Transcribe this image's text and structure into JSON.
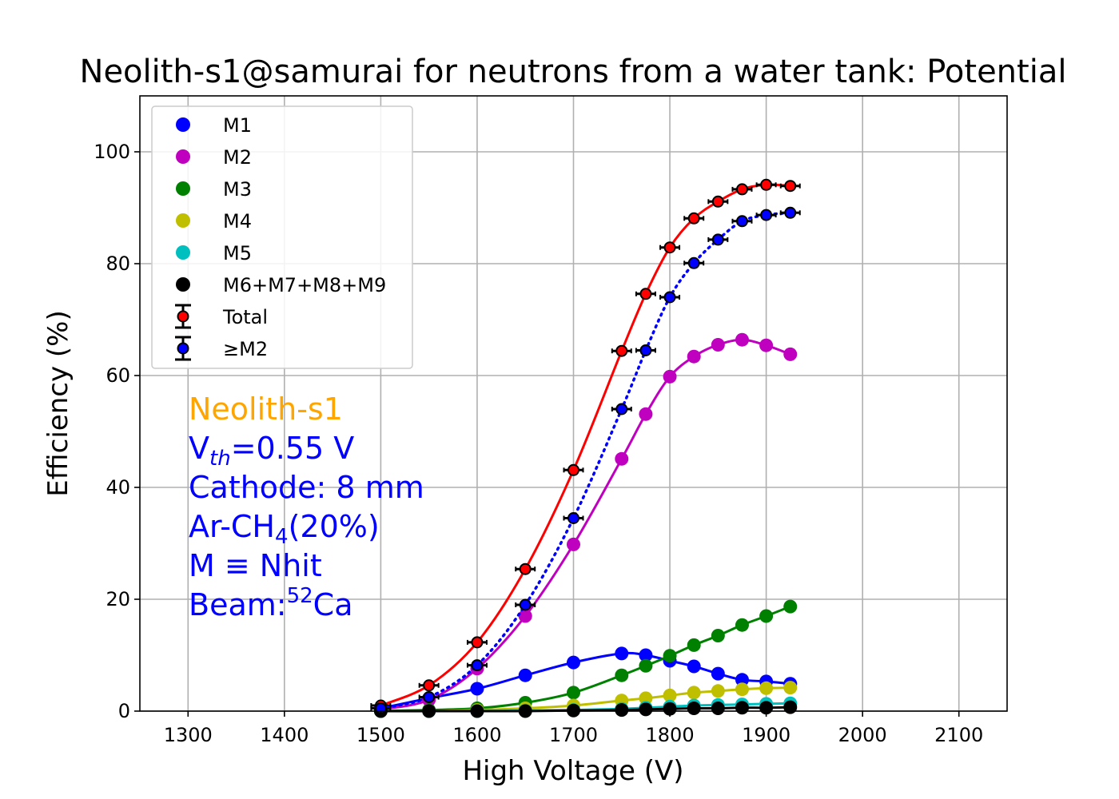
{
  "chart_data": {
    "type": "line",
    "title": "Neolith-s1@samurai for neutrons from a water tank: Potential",
    "xlabel": "High Voltage (V)",
    "ylabel": "Efficiency (%)",
    "xlim": [
      1250,
      2150
    ],
    "ylim": [
      0,
      110
    ],
    "xticks": [
      1300,
      1400,
      1500,
      1600,
      1700,
      1800,
      1900,
      2000,
      2100
    ],
    "yticks": [
      0,
      20,
      40,
      60,
      80,
      100
    ],
    "grid": true,
    "legend_position": "upper-left",
    "x": [
      1500,
      1550,
      1600,
      1650,
      1700,
      1750,
      1775,
      1800,
      1825,
      1850,
      1875,
      1900,
      1925
    ],
    "series": [
      {
        "name": "M1",
        "color": "#0000ff",
        "marker": "circle",
        "line": "solid",
        "values": [
          0.5,
          2.3,
          4.0,
          6.4,
          8.7,
          10.3,
          10.0,
          9.0,
          8.0,
          6.7,
          5.6,
          5.3,
          4.9
        ]
      },
      {
        "name": "M2",
        "color": "#bf00bf",
        "marker": "circle",
        "line": "solid",
        "values": [
          0.3,
          2.0,
          7.6,
          17.0,
          29.8,
          45.1,
          53.1,
          59.8,
          63.4,
          65.5,
          66.4,
          65.4,
          63.8
        ]
      },
      {
        "name": "M3",
        "color": "#008000",
        "marker": "circle",
        "line": "solid",
        "values": [
          0.0,
          0.2,
          0.5,
          1.5,
          3.3,
          6.4,
          8.1,
          9.9,
          11.8,
          13.5,
          15.4,
          17.0,
          18.7
        ]
      },
      {
        "name": "M4",
        "color": "#bfbf00",
        "marker": "circle",
        "line": "solid",
        "values": [
          0.0,
          0.0,
          0.2,
          0.5,
          1.0,
          1.9,
          2.3,
          2.8,
          3.3,
          3.6,
          3.9,
          4.1,
          4.2
        ]
      },
      {
        "name": "M5",
        "color": "#00bfbf",
        "marker": "circle",
        "line": "solid",
        "values": [
          0.0,
          0.0,
          0.0,
          0.1,
          0.2,
          0.4,
          0.6,
          0.8,
          1.0,
          1.1,
          1.2,
          1.3,
          1.4
        ]
      },
      {
        "name": "M6+M7+M8+M9",
        "color": "#000000",
        "marker": "circle",
        "line": "solid",
        "values": [
          0.0,
          0.0,
          0.0,
          0.0,
          0.1,
          0.2,
          0.3,
          0.4,
          0.5,
          0.5,
          0.6,
          0.6,
          0.7
        ]
      },
      {
        "name": "Total",
        "color": "#ff0000",
        "marker": "circle-errorbar",
        "line": "solid",
        "values": [
          1.0,
          4.6,
          12.3,
          25.4,
          43.1,
          64.4,
          74.6,
          82.9,
          88.1,
          91.1,
          93.3,
          94.1,
          93.9
        ]
      },
      {
        "name": "≥M2",
        "color": "#0000ff",
        "marker": "circle-errorbar",
        "line": "dotted",
        "values": [
          0.5,
          2.5,
          8.2,
          19.0,
          34.5,
          54.0,
          64.5,
          74.0,
          80.1,
          84.3,
          87.6,
          88.7,
          89.1
        ]
      }
    ],
    "annotations": {
      "detector": "Neolith-s1",
      "threshold_prefix": "V",
      "threshold_sub": "th",
      "threshold_suffix": "=0.55 V",
      "cathode": "Cathode: 8 mm",
      "gas_prefix": "Ar-CH",
      "gas_sub": "4",
      "gas_suffix": "(20%)",
      "multiplicity": "M ≡ Nhit",
      "beam_prefix": "Beam:",
      "beam_sup": "52",
      "beam_suffix": "Ca",
      "detector_color": "#ffa500",
      "text_color": "#0000ff"
    }
  }
}
